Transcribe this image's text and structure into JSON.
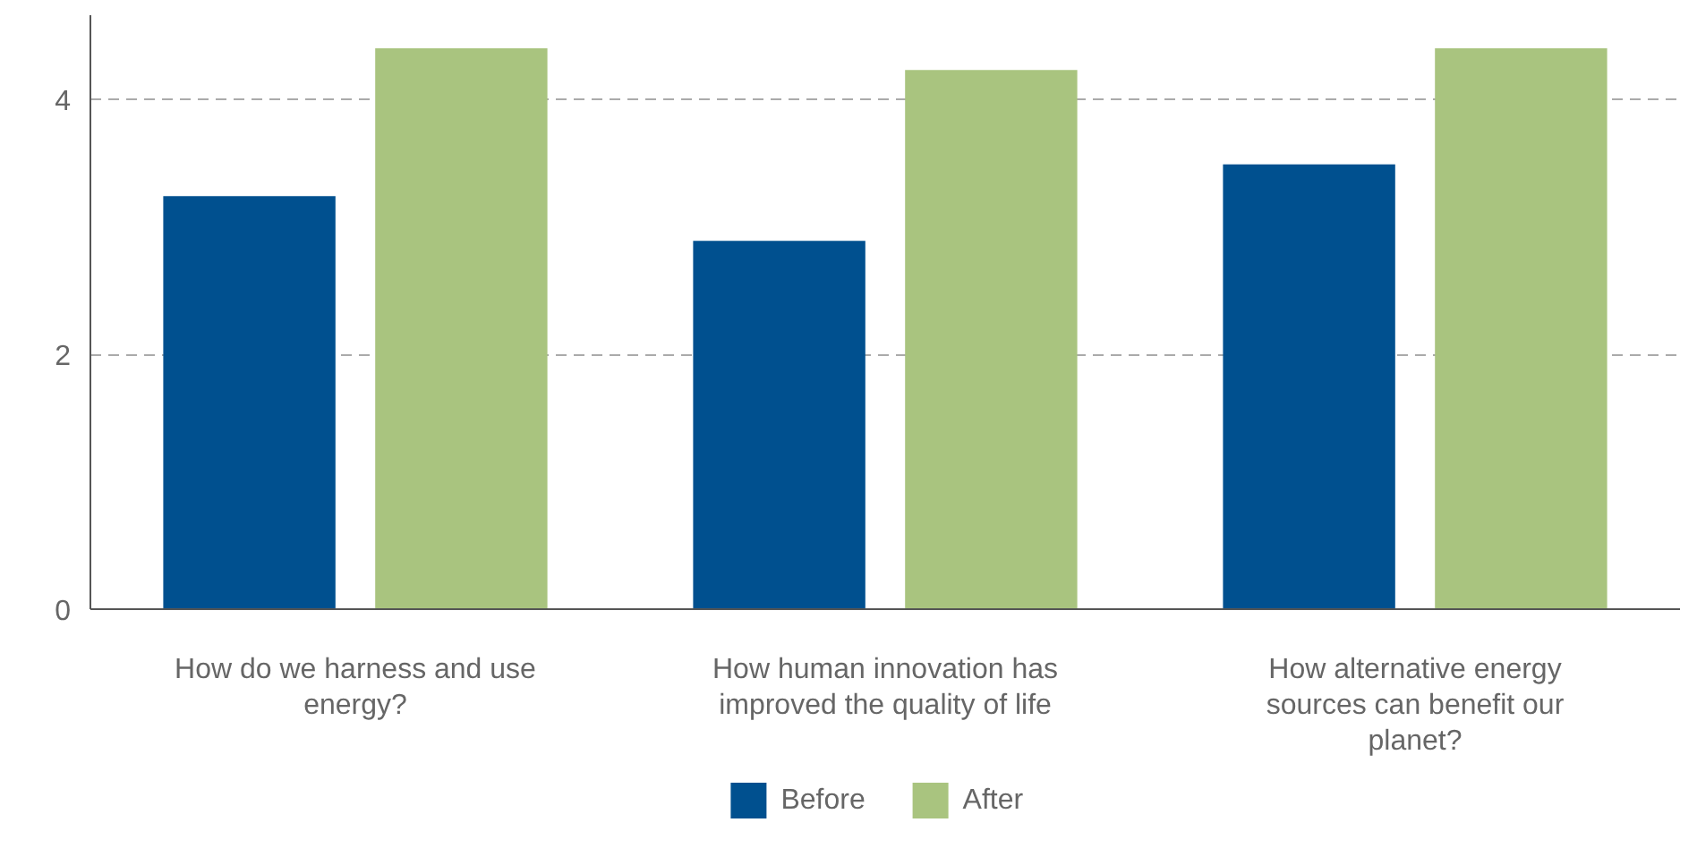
{
  "chart_data": {
    "type": "bar",
    "categories": [
      "How do we harness and use energy?",
      "How human innovation has improved the quality of life",
      "How alternative energy sources can benefit our planet?"
    ],
    "series": [
      {
        "name": "Before",
        "color": "#00508f",
        "values": [
          3.24,
          2.89,
          3.49
        ]
      },
      {
        "name": "After",
        "color": "#a9c47f",
        "values": [
          4.4,
          4.23,
          4.4
        ]
      }
    ],
    "ylim": [
      0,
      4.66
    ],
    "yticks": [
      0,
      2,
      4
    ],
    "grid": "y",
    "legend": "bottom"
  }
}
